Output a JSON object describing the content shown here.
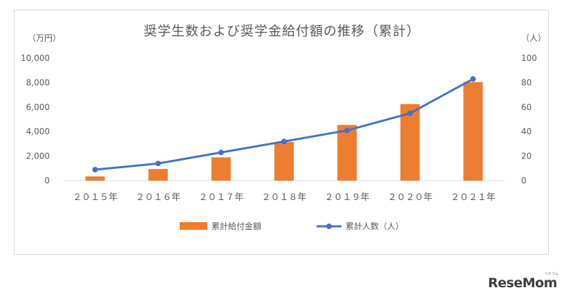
{
  "chart_data": {
    "type": "bar+line",
    "title": "奨学生数および奨学金給付額の推移（累計）",
    "left_unit": "（万円）",
    "right_unit": "（人）",
    "categories": [
      "２０１５年",
      "２０１６年",
      "２０１７年",
      "２０１８年",
      "２０１９年",
      "２０２０年",
      "２０２１年"
    ],
    "y_left_ticks": [
      "0",
      "2,000",
      "4,000",
      "6,000",
      "8,000",
      "10,000"
    ],
    "y_right_ticks": [
      "0",
      "20",
      "40",
      "60",
      "80",
      "100"
    ],
    "y_left_lim": [
      0,
      10000
    ],
    "y_right_lim": [
      0,
      100
    ],
    "series": [
      {
        "name": "累計給付金額",
        "type": "bar",
        "axis": "left",
        "color": "#ed7d31",
        "values": [
          350,
          950,
          1900,
          3150,
          4550,
          6250,
          8050
        ]
      },
      {
        "name": "累計人数（人）",
        "type": "line",
        "axis": "right",
        "color": "#4472c4",
        "values": [
          9,
          14,
          23,
          32,
          41,
          55,
          83
        ]
      }
    ],
    "legend_position": "bottom"
  },
  "branding": {
    "logo_text": "ReseMom",
    "logo_small": "リセマム"
  }
}
